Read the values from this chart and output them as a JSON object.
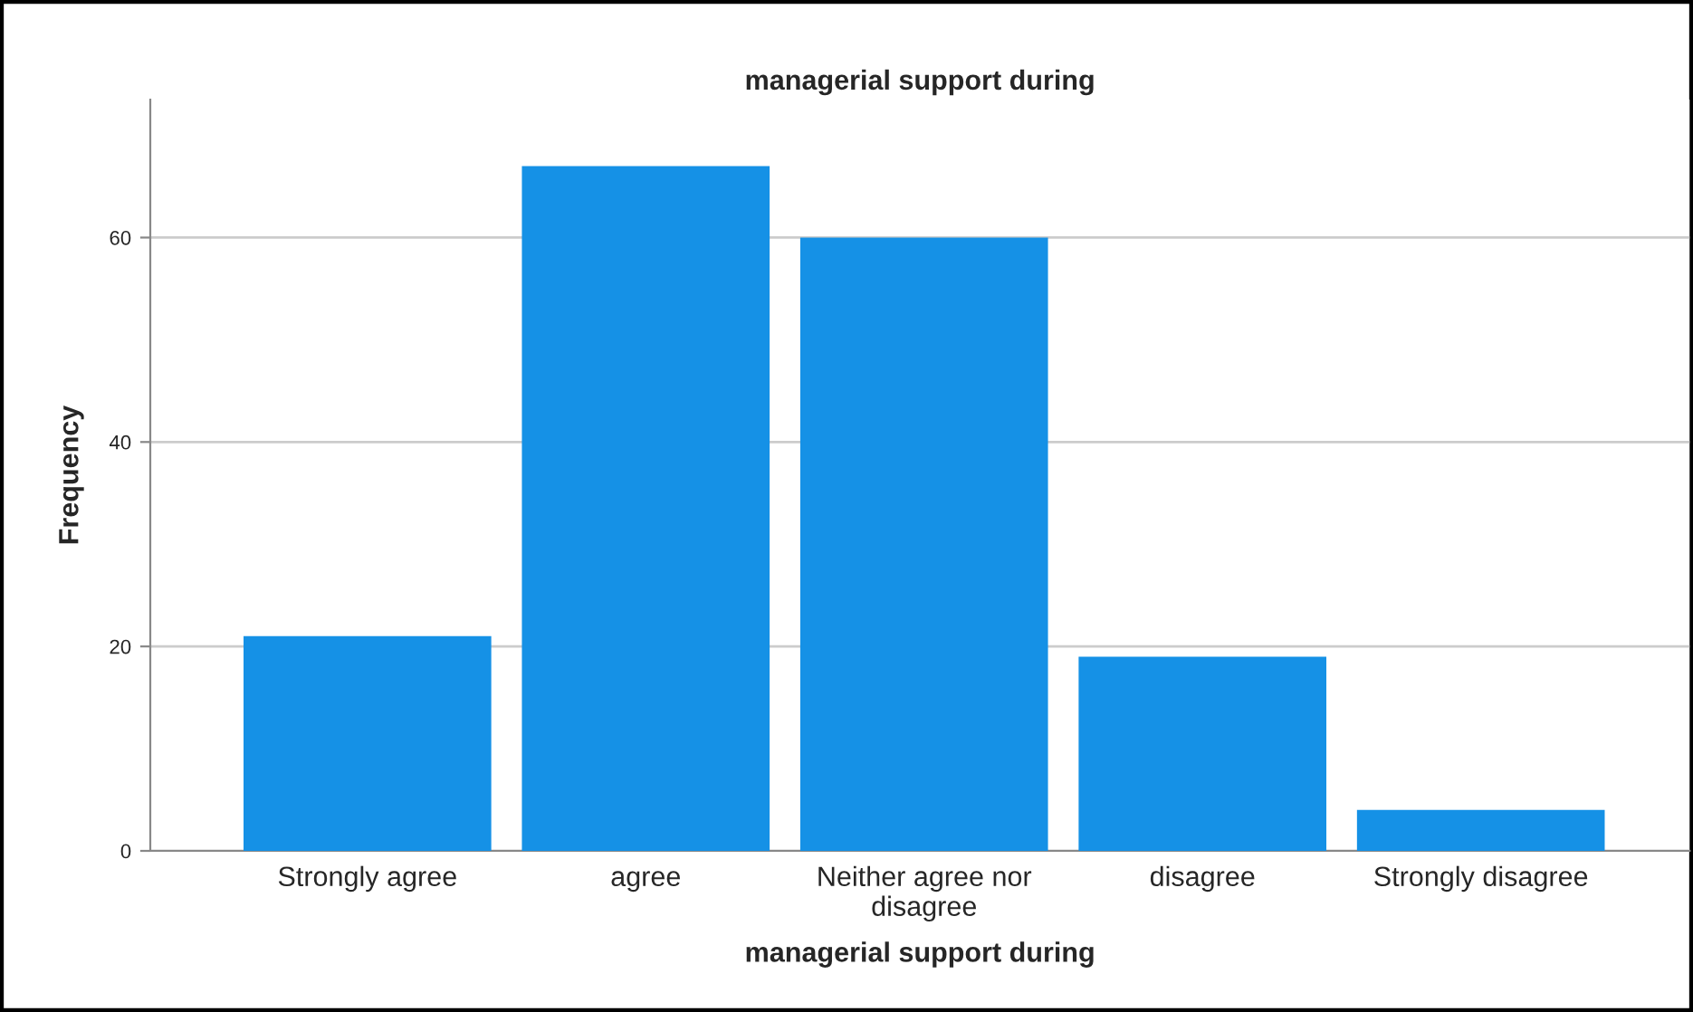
{
  "chart_data": {
    "type": "bar",
    "title": "managerial support during",
    "xlabel": "managerial support during",
    "ylabel": "Frequency",
    "categories": [
      "Strongly agree",
      "agree",
      "Neither agree nor\ndisagree",
      "disagree",
      "Strongly disagree"
    ],
    "values": [
      21,
      67,
      60,
      19,
      4
    ],
    "color": "#1591e6",
    "ylim": [
      0,
      73.5
    ],
    "yticks": [
      0,
      20,
      40,
      60
    ],
    "grid": "y"
  }
}
